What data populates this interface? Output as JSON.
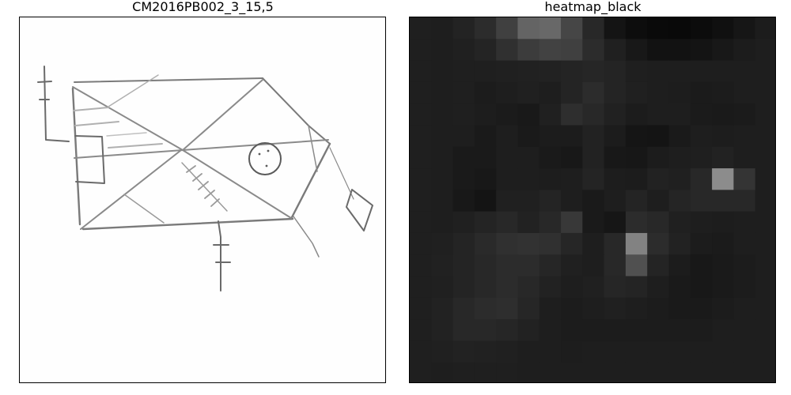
{
  "chart_data": [
    {
      "type": "image",
      "title": "CM2016PB002_3_15,5",
      "content": "pencil-sketch-drawing"
    },
    {
      "type": "heatmap",
      "title": "heatmap_black",
      "rows": 17,
      "cols": 17,
      "base_level": 31,
      "values": [
        [
          31,
          30,
          35,
          44,
          64,
          100,
          104,
          70,
          40,
          20,
          13,
          10,
          9,
          12,
          16,
          22,
          28
        ],
        [
          31,
          30,
          32,
          36,
          48,
          60,
          66,
          64,
          44,
          32,
          24,
          18,
          18,
          20,
          24,
          28,
          30
        ],
        [
          31,
          30,
          31,
          31,
          32,
          33,
          34,
          36,
          38,
          36,
          31,
          30,
          30,
          30,
          30,
          30,
          30
        ],
        [
          31,
          30,
          31,
          28,
          30,
          32,
          30,
          36,
          44,
          36,
          32,
          30,
          29,
          27,
          28,
          30,
          30
        ],
        [
          31,
          30,
          31,
          29,
          27,
          25,
          32,
          46,
          40,
          33,
          28,
          30,
          30,
          27,
          26,
          27,
          30
        ],
        [
          31,
          30,
          30,
          26,
          30,
          26,
          28,
          28,
          34,
          28,
          21,
          20,
          26,
          30,
          29,
          30,
          30
        ],
        [
          31,
          30,
          26,
          26,
          30,
          30,
          26,
          24,
          34,
          24,
          23,
          28,
          30,
          31,
          34,
          30,
          30
        ],
        [
          31,
          30,
          26,
          24,
          30,
          30,
          29,
          30,
          36,
          29,
          28,
          34,
          32,
          40,
          140,
          52,
          30
        ],
        [
          31,
          30,
          24,
          20,
          32,
          32,
          36,
          30,
          26,
          30,
          36,
          30,
          37,
          40,
          40,
          40,
          30
        ],
        [
          31,
          30,
          32,
          36,
          40,
          34,
          40,
          56,
          26,
          22,
          44,
          40,
          32,
          30,
          29,
          30,
          30
        ],
        [
          31,
          32,
          36,
          42,
          48,
          50,
          48,
          38,
          30,
          40,
          130,
          44,
          34,
          28,
          27,
          30,
          30
        ],
        [
          31,
          33,
          36,
          40,
          44,
          44,
          38,
          32,
          30,
          40,
          80,
          36,
          28,
          24,
          26,
          28,
          30
        ],
        [
          31,
          32,
          36,
          40,
          44,
          40,
          34,
          30,
          32,
          38,
          36,
          30,
          26,
          24,
          26,
          28,
          30
        ],
        [
          31,
          34,
          40,
          44,
          46,
          38,
          30,
          28,
          30,
          32,
          30,
          28,
          26,
          26,
          28,
          30,
          30
        ],
        [
          31,
          34,
          40,
          40,
          38,
          34,
          30,
          28,
          28,
          28,
          28,
          28,
          28,
          28,
          30,
          30,
          30
        ],
        [
          31,
          32,
          34,
          33,
          32,
          30,
          30,
          29,
          30,
          30,
          30,
          30,
          30,
          30,
          30,
          30,
          30
        ],
        [
          31,
          30,
          31,
          31,
          31,
          30,
          30,
          30,
          30,
          30,
          30,
          30,
          30,
          30,
          30,
          30,
          30
        ]
      ]
    }
  ]
}
